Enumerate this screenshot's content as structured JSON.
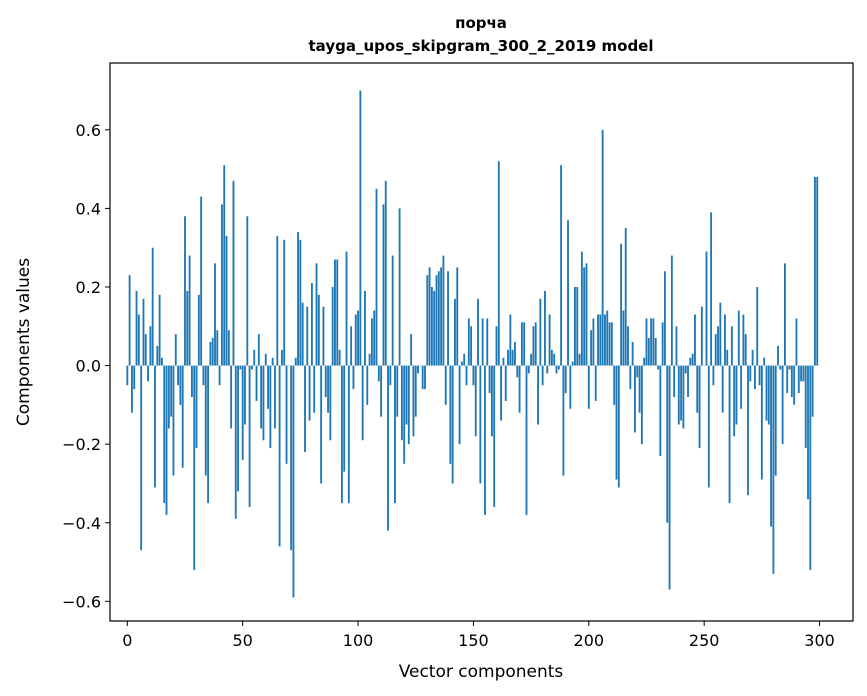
{
  "chart_data": {
    "type": "bar",
    "title": "порча",
    "subtitle": "tayga_upos_skipgram_300_2_2019 model",
    "xlabel": "Vector components",
    "ylabel": "Components values",
    "xlim": [
      -7.5,
      314.5
    ],
    "ylim": [
      -0.65,
      0.77
    ],
    "xticks": [
      0,
      50,
      100,
      150,
      200,
      250,
      300
    ],
    "xtick_labels": [
      "0",
      "50",
      "100",
      "150",
      "200",
      "250",
      "300"
    ],
    "yticks": [
      -0.6,
      -0.4,
      -0.2,
      0.0,
      0.2,
      0.4,
      0.6
    ],
    "ytick_labels": [
      "−0.6",
      "−0.4",
      "−0.2",
      "0.0",
      "0.2",
      "0.4",
      "0.6"
    ],
    "bar_color": "#1f77b4",
    "values": [
      -0.05,
      0.23,
      -0.12,
      -0.06,
      0.19,
      0.13,
      -0.47,
      0.17,
      0.08,
      -0.04,
      0.1,
      0.3,
      -0.31,
      0.05,
      0.18,
      0.02,
      -0.35,
      -0.38,
      -0.16,
      -0.13,
      -0.28,
      0.08,
      -0.05,
      -0.1,
      -0.26,
      0.38,
      0.19,
      0.28,
      -0.08,
      -0.52,
      -0.21,
      0.18,
      0.43,
      -0.05,
      -0.28,
      -0.35,
      0.06,
      0.07,
      0.26,
      0.09,
      -0.05,
      0.41,
      0.51,
      0.33,
      0.09,
      -0.16,
      0.47,
      -0.39,
      -0.32,
      -0.01,
      -0.24,
      -0.15,
      0.38,
      -0.36,
      -0.01,
      0.04,
      -0.09,
      0.08,
      -0.16,
      -0.19,
      0.03,
      -0.11,
      -0.21,
      0.02,
      -0.16,
      0.33,
      -0.46,
      0.04,
      0.32,
      -0.25,
      0.0,
      -0.47,
      -0.59,
      0.02,
      0.34,
      0.32,
      0.16,
      -0.22,
      0.15,
      -0.14,
      0.21,
      -0.12,
      0.26,
      0.18,
      -0.3,
      0.15,
      -0.08,
      -0.12,
      -0.19,
      0.2,
      0.27,
      0.27,
      0.04,
      -0.35,
      -0.27,
      0.29,
      -0.35,
      0.1,
      -0.06,
      0.13,
      0.14,
      0.7,
      -0.19,
      0.19,
      -0.1,
      0.03,
      0.12,
      0.14,
      0.45,
      -0.04,
      -0.13,
      0.41,
      0.47,
      -0.42,
      -0.05,
      0.28,
      -0.35,
      -0.13,
      0.4,
      -0.19,
      -0.25,
      -0.15,
      -0.2,
      0.08,
      -0.18,
      -0.13,
      -0.02,
      0.0,
      -0.06,
      -0.06,
      0.23,
      0.25,
      0.2,
      0.19,
      0.23,
      0.24,
      0.25,
      0.28,
      -0.1,
      0.24,
      -0.25,
      -0.3,
      0.17,
      0.25,
      -0.2,
      0.01,
      0.03,
      -0.05,
      0.12,
      0.1,
      -0.05,
      -0.18,
      0.17,
      -0.3,
      0.12,
      -0.38,
      0.12,
      -0.07,
      -0.18,
      -0.36,
      0.1,
      0.52,
      -0.14,
      0.02,
      -0.09,
      0.04,
      0.13,
      0.04,
      0.06,
      -0.03,
      -0.12,
      0.11,
      0.11,
      -0.38,
      -0.02,
      0.03,
      0.1,
      0.11,
      -0.15,
      0.17,
      -0.05,
      0.19,
      -0.02,
      0.13,
      0.04,
      0.03,
      -0.02,
      -0.01,
      0.51,
      -0.28,
      -0.07,
      0.37,
      -0.11,
      0.01,
      0.2,
      0.2,
      0.03,
      0.29,
      0.25,
      0.26,
      -0.11,
      0.09,
      0.12,
      -0.09,
      0.13,
      0.13,
      0.6,
      0.13,
      0.14,
      0.11,
      0.11,
      -0.1,
      -0.29,
      -0.31,
      0.31,
      0.14,
      0.35,
      0.1,
      -0.06,
      0.06,
      -0.17,
      -0.03,
      -0.12,
      -0.2,
      0.02,
      0.12,
      0.07,
      0.12,
      0.12,
      0.07,
      -0.01,
      -0.23,
      0.11,
      0.24,
      -0.4,
      -0.57,
      0.28,
      -0.08,
      0.1,
      -0.15,
      -0.14,
      -0.16,
      -0.02,
      -0.08,
      0.02,
      0.03,
      0.13,
      -0.12,
      -0.21,
      0.15,
      0.0,
      0.29,
      -0.31,
      0.39,
      -0.05,
      0.08,
      0.1,
      0.16,
      -0.12,
      0.13,
      0.04,
      -0.35,
      0.1,
      -0.18,
      -0.15,
      0.14,
      -0.11,
      0.13,
      0.08,
      -0.33,
      -0.04,
      0.04,
      -0.06,
      0.2,
      -0.05,
      -0.29,
      0.02,
      -0.14,
      -0.15,
      -0.41,
      -0.53,
      -0.28,
      0.05,
      -0.01,
      -0.2,
      0.26,
      -0.07,
      -0.01,
      -0.08,
      -0.1,
      0.12,
      -0.07,
      -0.04,
      -0.04,
      -0.21,
      -0.34,
      -0.52,
      -0.13,
      0.48,
      0.48
    ]
  }
}
